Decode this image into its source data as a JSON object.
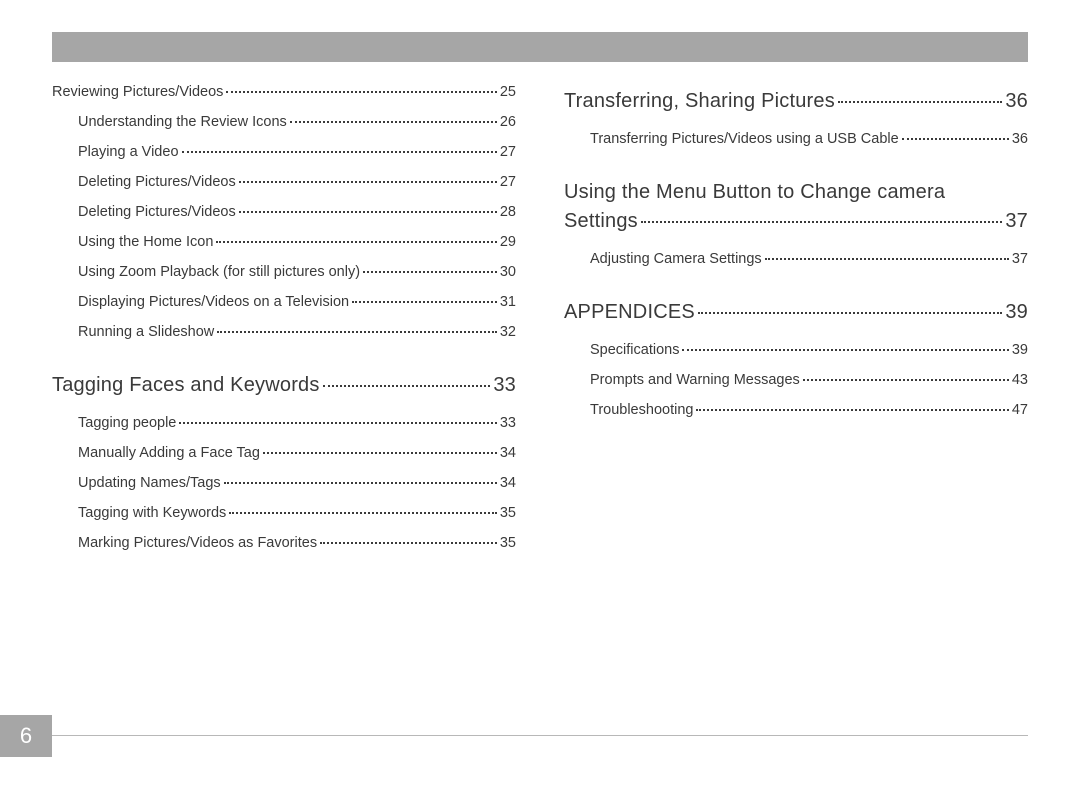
{
  "pageNumber": "6",
  "colors": {
    "barGray": "#a6a6a6",
    "text": "#3a3a3a",
    "rule": "#b8b8b8",
    "white": "#ffffff"
  },
  "leftColumn": [
    {
      "type": "chapter",
      "label": "Reviewing Pictures/Videos",
      "page": "25"
    },
    {
      "type": "item",
      "label": "Understanding the Review Icons",
      "page": "26"
    },
    {
      "type": "item",
      "label": "Playing a Video",
      "page": "27"
    },
    {
      "type": "item",
      "label": "Deleting Pictures/Videos",
      "page": "27"
    },
    {
      "type": "item",
      "label": "Deleting Pictures/Videos",
      "page": "28"
    },
    {
      "type": "item",
      "label": "Using the Home Icon",
      "page": "29"
    },
    {
      "type": "item",
      "label": "Using Zoom Playback (for still pictures only)",
      "page": "30"
    },
    {
      "type": "item",
      "label": "Displaying Pictures/Videos on a Television",
      "page": "31"
    },
    {
      "type": "item",
      "label": "Running a Slideshow",
      "page": "32"
    },
    {
      "type": "section",
      "label": "Tagging Faces and Keywords",
      "page": "33"
    },
    {
      "type": "item",
      "label": "Tagging people",
      "page": "33"
    },
    {
      "type": "item",
      "label": "Manually Adding a Face Tag",
      "page": "34"
    },
    {
      "type": "item",
      "label": "Updating Names/Tags",
      "page": "34"
    },
    {
      "type": "item",
      "label": "Tagging with Keywords",
      "page": "35"
    },
    {
      "type": "item",
      "label": "Marking Pictures/Videos as Favorites",
      "page": "35"
    }
  ],
  "rightColumn": [
    {
      "type": "section",
      "label": "Transferring, Sharing Pictures",
      "page": "36"
    },
    {
      "type": "item",
      "label": "Transferring Pictures/Videos using a USB Cable",
      "page": "36"
    },
    {
      "type": "section",
      "label": "Using the Menu Button to Change camera Settings",
      "page": "37",
      "wrap": true
    },
    {
      "type": "item",
      "label": "Adjusting Camera Settings",
      "page": "37"
    },
    {
      "type": "section",
      "label": "APPENDICES",
      "page": "39"
    },
    {
      "type": "item",
      "label": "Specifications",
      "page": "39"
    },
    {
      "type": "item",
      "label": "Prompts and Warning Messages",
      "page": "43"
    },
    {
      "type": "item",
      "label": "Troubleshooting",
      "page": "47"
    }
  ]
}
